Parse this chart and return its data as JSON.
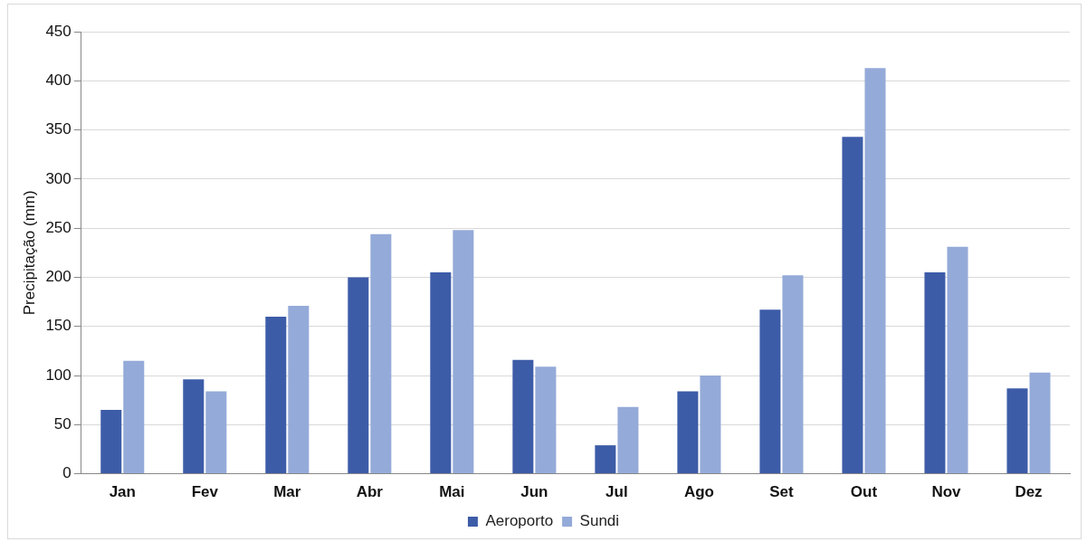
{
  "chart_data": {
    "type": "bar",
    "ylabel": "Precipitação (mm)",
    "categories": [
      "Jan",
      "Fev",
      "Mar",
      "Abr",
      "Mai",
      "Jun",
      "Jul",
      "Ago",
      "Set",
      "Out",
      "Nov",
      "Dez"
    ],
    "series": [
      {
        "name": "Aeroporto",
        "color": "#3d5ca8",
        "values": [
          65,
          96,
          160,
          200,
          205,
          116,
          29,
          84,
          167,
          343,
          205,
          87
        ]
      },
      {
        "name": "Sundi",
        "color": "#94aad8",
        "values": [
          115,
          84,
          171,
          244,
          248,
          109,
          68,
          100,
          202,
          413,
          231,
          103
        ]
      }
    ],
    "ylim": [
      0,
      450
    ],
    "yticks": [
      0,
      50,
      100,
      150,
      200,
      250,
      300,
      350,
      400,
      450
    ],
    "grid": "y",
    "legend": "bottom"
  }
}
